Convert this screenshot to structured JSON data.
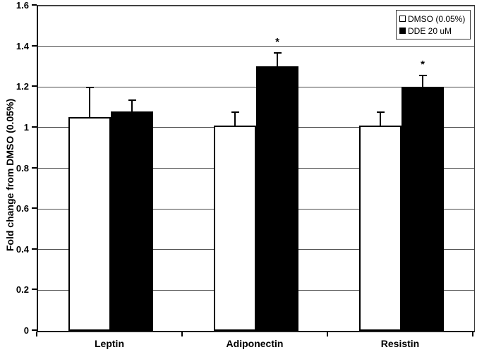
{
  "chart_data": {
    "type": "bar",
    "title": "",
    "xlabel": "",
    "ylabel": "Fold change from DMSO (0.05%)",
    "categories": [
      "Leptin",
      "Adiponectin",
      "Resistin"
    ],
    "series": [
      {
        "name": "DMSO (0.05%)",
        "fill": "#ffffff",
        "values": [
          1.05,
          1.01,
          1.01
        ],
        "error_up": [
          0.15,
          0.07,
          0.07
        ],
        "significance": [
          "",
          "",
          ""
        ]
      },
      {
        "name": "DDE 20 uM",
        "fill": "#000000",
        "values": [
          1.08,
          1.3,
          1.2
        ],
        "error_up": [
          0.06,
          0.07,
          0.06
        ],
        "significance": [
          "",
          "*",
          "*"
        ]
      }
    ],
    "ylim": [
      0,
      1.6
    ],
    "ytick_step": 0.2,
    "ytick_labels": [
      "0",
      "0.2",
      "0.4",
      "0.6",
      "0.8",
      "1",
      "1.2",
      "1.4",
      "1.6"
    ],
    "grid": "horizontal-major",
    "legend_position": "top-right",
    "significance_marker": "*"
  },
  "legend": {
    "items": [
      {
        "label": "DMSO (0.05%)",
        "swatch": "white-square"
      },
      {
        "label": "DDE 20 uM",
        "swatch": "black-square"
      }
    ]
  },
  "colors": {
    "background": "#ffffff",
    "gridline": "#4a4a4a",
    "axis": "#000000",
    "bar_dmso": "#ffffff",
    "bar_dde": "#000000"
  }
}
